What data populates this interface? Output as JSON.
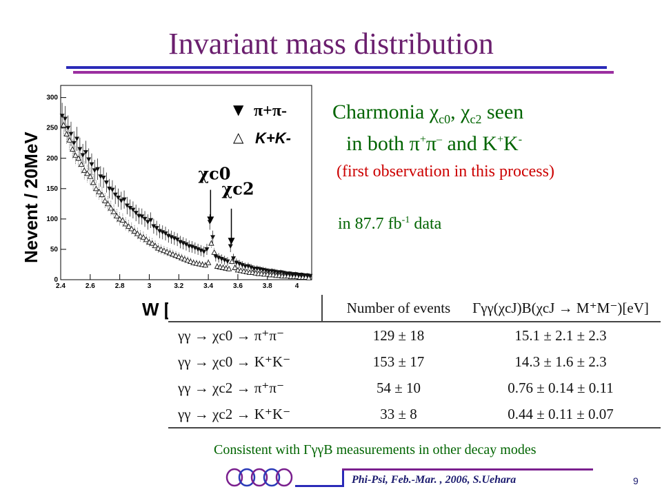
{
  "slide": {
    "title": "Invariant mass distribution",
    "page_number": "9",
    "footer": "Phi-Psi, Feb.-Mar. , 2006, S.Uehara"
  },
  "notes": {
    "line1_prefix": "Charmonia ",
    "chi": "χ",
    "c0": "c0",
    "c2": "c2",
    "comma": ", ",
    "seen": " seen",
    "line2_prefix": "in both ",
    "pi": "π",
    "and": " and K",
    "plus": "+",
    "minus": "–",
    "minus_k": "-",
    "line3": "(first observation in this process)",
    "line4_prefix": "in 87.7 fb",
    "line4_sup": "-1",
    "line4_suffix": " data",
    "consistent": "Consistent with ΓγγB measurements in other decay modes"
  },
  "table": {
    "headers": [
      "",
      "Number of events",
      "Γγγ(χcJ)B(χcJ → M⁺M⁻)[eV]"
    ],
    "rows": [
      [
        "γγ → χc0 → π⁺π⁻",
        "129 ± 18",
        "15.1 ± 2.1 ± 2.3"
      ],
      [
        "γγ → χc0 → K⁺K⁻",
        "153 ± 17",
        "14.3 ± 1.6 ± 2.3"
      ],
      [
        "γγ → χc2 → π⁺π⁻",
        "54 ± 10",
        "0.76 ± 0.14 ± 0.11"
      ],
      [
        "γγ → χc2 → K⁺K⁻",
        "33 ± 8",
        "0.44 ± 0.11 ± 0.07"
      ]
    ]
  },
  "chart_data": {
    "type": "scatter",
    "xlabel": "W [GeV]",
    "ylabel": "Nevent / 20MeV",
    "xlim": [
      2.4,
      4.1
    ],
    "ylim": [
      0,
      320
    ],
    "xticks": [
      "2.4",
      "2.6",
      "2.8",
      "3",
      "3.2",
      "3.4",
      "3.6",
      "3.8",
      "4"
    ],
    "yticks": [
      "0",
      "50",
      "100",
      "150",
      "200",
      "250",
      "300"
    ],
    "legend": [
      {
        "symbol": "▼",
        "label": "π+π-"
      },
      {
        "symbol": "△",
        "label": "K+K-"
      }
    ],
    "annotations": [
      {
        "label": "χc0",
        "x": 3.415,
        "y": 90
      },
      {
        "label": "χc2",
        "x": 3.556,
        "y": 55
      }
    ],
    "series": [
      {
        "name": "π+π-",
        "x": [
          2.41,
          2.43,
          2.45,
          2.47,
          2.49,
          2.51,
          2.53,
          2.55,
          2.57,
          2.59,
          2.61,
          2.63,
          2.65,
          2.67,
          2.69,
          2.71,
          2.73,
          2.75,
          2.77,
          2.79,
          2.81,
          2.83,
          2.85,
          2.87,
          2.89,
          2.91,
          2.93,
          2.95,
          2.97,
          2.99,
          3.01,
          3.03,
          3.05,
          3.07,
          3.09,
          3.11,
          3.13,
          3.15,
          3.17,
          3.19,
          3.21,
          3.23,
          3.25,
          3.27,
          3.29,
          3.31,
          3.33,
          3.35,
          3.37,
          3.39,
          3.41,
          3.43,
          3.45,
          3.47,
          3.49,
          3.51,
          3.53,
          3.55,
          3.57,
          3.59,
          3.61,
          3.63,
          3.65,
          3.67,
          3.69,
          3.71,
          3.73,
          3.75,
          3.77,
          3.79,
          3.81,
          3.83,
          3.85,
          3.87,
          3.89,
          3.91,
          3.93,
          3.95,
          3.97,
          3.99,
          4.01,
          4.03,
          4.05,
          4.07,
          4.09
        ],
        "y": [
          270,
          265,
          250,
          240,
          225,
          232,
          215,
          205,
          210,
          198,
          190,
          180,
          182,
          170,
          168,
          160,
          150,
          148,
          140,
          135,
          130,
          132,
          122,
          118,
          115,
          110,
          105,
          104,
          100,
          95,
          98,
          88,
          85,
          80,
          78,
          76,
          72,
          70,
          68,
          66,
          62,
          60,
          58,
          55,
          54,
          52,
          50,
          48,
          46,
          50,
          95,
          70,
          38,
          36,
          34,
          32,
          30,
          55,
          35,
          28,
          26,
          24,
          22,
          22,
          20,
          18,
          18,
          17,
          16,
          15,
          14,
          14,
          13,
          12,
          12,
          11,
          10,
          10,
          9,
          9,
          8,
          8,
          7,
          7,
          6
        ]
      },
      {
        "name": "K+K-",
        "x": [
          2.42,
          2.44,
          2.46,
          2.48,
          2.5,
          2.52,
          2.54,
          2.56,
          2.58,
          2.6,
          2.62,
          2.64,
          2.66,
          2.68,
          2.7,
          2.72,
          2.74,
          2.76,
          2.78,
          2.8,
          2.82,
          2.84,
          2.86,
          2.88,
          2.9,
          2.92,
          2.94,
          2.96,
          2.98,
          3.0,
          3.02,
          3.04,
          3.06,
          3.08,
          3.1,
          3.12,
          3.14,
          3.16,
          3.18,
          3.2,
          3.22,
          3.24,
          3.26,
          3.28,
          3.3,
          3.32,
          3.34,
          3.36,
          3.38,
          3.4,
          3.42,
          3.44,
          3.46,
          3.48,
          3.5,
          3.52,
          3.54,
          3.56,
          3.58,
          3.6,
          3.62,
          3.64,
          3.66,
          3.68,
          3.7,
          3.72,
          3.74,
          3.76,
          3.78,
          3.8,
          3.82,
          3.84,
          3.86,
          3.88,
          3.9,
          3.92,
          3.94,
          3.96,
          3.98,
          4.0,
          4.02,
          4.04,
          4.06,
          4.08
        ],
        "y": [
          255,
          240,
          230,
          215,
          205,
          200,
          190,
          180,
          175,
          170,
          160,
          150,
          145,
          140,
          130,
          125,
          118,
          112,
          105,
          100,
          98,
          92,
          88,
          84,
          80,
          76,
          72,
          70,
          66,
          62,
          60,
          56,
          52,
          50,
          48,
          46,
          44,
          42,
          40,
          38,
          36,
          34,
          32,
          30,
          28,
          27,
          26,
          25,
          24,
          28,
          60,
          45,
          22,
          21,
          20,
          19,
          18,
          30,
          20,
          16,
          15,
          14,
          13,
          12,
          12,
          11,
          10,
          10,
          9,
          9,
          8,
          8,
          7,
          7,
          6,
          6,
          6,
          5,
          5,
          5,
          4,
          4,
          4,
          3
        ]
      }
    ]
  }
}
